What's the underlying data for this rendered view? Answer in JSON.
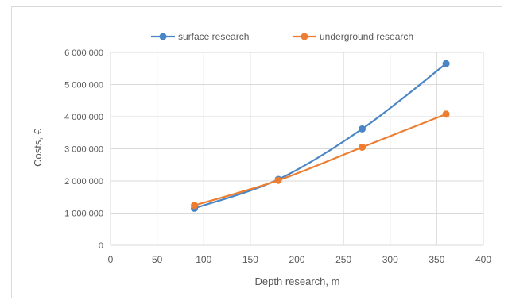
{
  "chart_data": {
    "type": "line",
    "title": "",
    "xlabel": "Depth research, m",
    "ylabel": "Costs, €",
    "xlim": [
      0,
      400
    ],
    "ylim": [
      0,
      6000000
    ],
    "x_ticks": [
      0,
      50,
      100,
      150,
      200,
      250,
      300,
      350,
      400
    ],
    "y_ticks": [
      0,
      1000000,
      2000000,
      3000000,
      4000000,
      5000000,
      6000000
    ],
    "x_tick_labels": [
      "0",
      "50",
      "100",
      "150",
      "200",
      "250",
      "300",
      "350",
      "400"
    ],
    "y_tick_labels": [
      "0",
      "1 000 000",
      "2 000 000",
      "3 000 000",
      "4 000 000",
      "5 000 000",
      "6 000 000"
    ],
    "grid": true,
    "legend": "top",
    "series": [
      {
        "name": "surface research",
        "color": "#4a86c5",
        "x": [
          90,
          180,
          270,
          360
        ],
        "y": [
          1150000,
          2050000,
          3620000,
          5650000
        ]
      },
      {
        "name": "underground research",
        "color": "#ed7d31",
        "x": [
          90,
          180,
          270,
          360
        ],
        "y": [
          1240000,
          2020000,
          3050000,
          4080000
        ]
      }
    ]
  }
}
